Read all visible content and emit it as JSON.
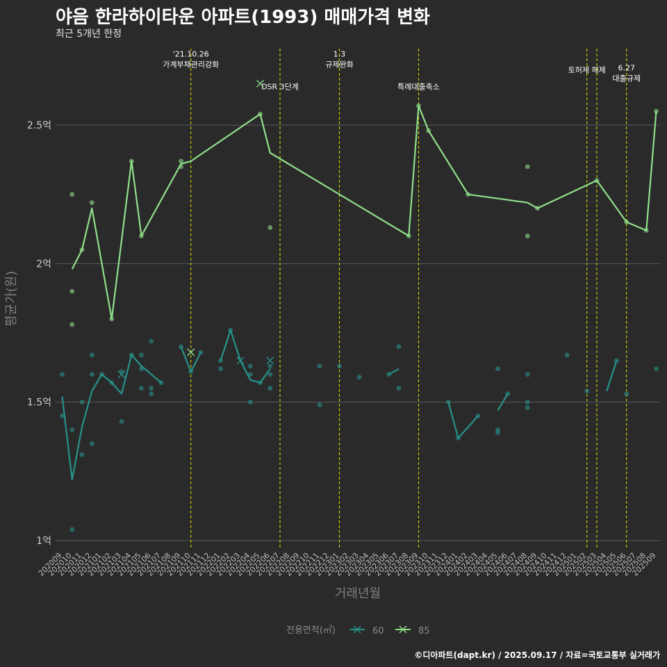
{
  "chart_data": {
    "type": "line",
    "title": "야음 한라하이타운 아파트(1993) 매매가격 변화",
    "subtitle": "최근 5개년 한정",
    "xlabel": "거래년월",
    "ylabel": "평균가(원)",
    "caption": "©디아파트(dapt.kr) / 2025.09.17 / 자료=국토교통부 실거래가",
    "categories": [
      "202009",
      "202010",
      "202011",
      "202012",
      "202101",
      "202102",
      "202103",
      "202104",
      "202105",
      "202106",
      "202107",
      "202108",
      "202109",
      "202110",
      "202111",
      "202112",
      "202201",
      "202202",
      "202203",
      "202204",
      "202205",
      "202206",
      "202207",
      "202208",
      "202209",
      "202210",
      "202211",
      "202212",
      "202301",
      "202302",
      "202303",
      "202304",
      "202305",
      "202306",
      "202307",
      "202308",
      "202309",
      "202310",
      "202311",
      "202312",
      "202401",
      "202402",
      "202403",
      "202404",
      "202405",
      "202406",
      "202407",
      "202408",
      "202409",
      "202410",
      "202411",
      "202412",
      "202501",
      "202502",
      "202503",
      "202504",
      "202505",
      "202506",
      "202507",
      "202508",
      "202509"
    ],
    "y_ticks": [
      {
        "value": 1.0,
        "label": "1억"
      },
      {
        "value": 1.5,
        "label": "1.5억"
      },
      {
        "value": 2.0,
        "label": "2억"
      },
      {
        "value": 2.5,
        "label": "2.5억"
      }
    ],
    "ylim": [
      0.97,
      2.78
    ],
    "grid": true,
    "legend": {
      "title": "전용면적(㎡)",
      "position": "bottom",
      "items": [
        {
          "name": "60",
          "color": "#26938a"
        },
        {
          "name": "85",
          "color": "#8fe08a"
        }
      ]
    },
    "events": [
      {
        "x": 13,
        "lines": [
          "'21.10.26",
          "가계부채관리강화"
        ],
        "y": 2.72
      },
      {
        "x": 22,
        "lines": [
          "DSR 3단계"
        ],
        "y": 2.64
      },
      {
        "x": 28,
        "lines": [
          "1.3",
          "규제완화"
        ],
        "y": 2.72
      },
      {
        "x": 36,
        "lines": [
          "특례대출축소"
        ],
        "y": 2.64
      },
      {
        "x": 53,
        "lines": [
          "토허제 해제"
        ],
        "y": 2.7
      },
      {
        "x": 54,
        "lines": [],
        "y": 2.7
      },
      {
        "x": 57,
        "lines": [
          "6.27",
          "대출규제"
        ],
        "y": 2.67
      }
    ],
    "series": [
      {
        "name": "60",
        "color": "#26938a",
        "line_segments": [
          [
            [
              0,
              1.52
            ],
            [
              1,
              1.22
            ],
            [
              2,
              1.41
            ],
            [
              3,
              1.54
            ],
            [
              4,
              1.6
            ],
            [
              5,
              1.57
            ],
            [
              6,
              1.53
            ],
            [
              7,
              1.67
            ],
            [
              8,
              1.63
            ],
            [
              9,
              1.6
            ],
            [
              10,
              1.57
            ]
          ],
          [
            [
              12,
              1.7
            ],
            [
              13,
              1.61
            ],
            [
              14,
              1.68
            ]
          ],
          [
            [
              16,
              1.65
            ],
            [
              17,
              1.76
            ],
            [
              18,
              1.65
            ],
            [
              19,
              1.58
            ],
            [
              20,
              1.57
            ],
            [
              21,
              1.62
            ]
          ],
          [
            [
              33,
              1.6
            ],
            [
              34,
              1.62
            ]
          ],
          [
            [
              39,
              1.5
            ],
            [
              40,
              1.37
            ],
            [
              41,
              1.41
            ],
            [
              42,
              1.45
            ]
          ],
          [
            [
              44,
              1.47
            ],
            [
              45,
              1.53
            ]
          ],
          [
            [
              55,
              1.54
            ],
            [
              56,
              1.65
            ]
          ]
        ],
        "points": [
          [
            0,
            1.6
          ],
          [
            0,
            1.45
          ],
          [
            1,
            1.4
          ],
          [
            1,
            1.04
          ],
          [
            2,
            1.31
          ],
          [
            2,
            1.5
          ],
          [
            3,
            1.67
          ],
          [
            3,
            1.6
          ],
          [
            3,
            1.35
          ],
          [
            4,
            1.6
          ],
          [
            5,
            1.57
          ],
          [
            6,
            1.61
          ],
          [
            6,
            1.43
          ],
          [
            7,
            1.67
          ],
          [
            8,
            1.67
          ],
          [
            8,
            1.62
          ],
          [
            8,
            1.55
          ],
          [
            9,
            1.72
          ],
          [
            9,
            1.55
          ],
          [
            9,
            1.53
          ],
          [
            10,
            1.57
          ],
          [
            12,
            1.7
          ],
          [
            13,
            1.61
          ],
          [
            14,
            1.68
          ],
          [
            16,
            1.65
          ],
          [
            16,
            1.62
          ],
          [
            17,
            1.76
          ],
          [
            19,
            1.63
          ],
          [
            19,
            1.6
          ],
          [
            19,
            1.5
          ],
          [
            20,
            1.57
          ],
          [
            21,
            1.6
          ],
          [
            21,
            1.55
          ],
          [
            21,
            1.63
          ],
          [
            26,
            1.49
          ],
          [
            26,
            1.63
          ],
          [
            28,
            1.63
          ],
          [
            30,
            1.59
          ],
          [
            33,
            1.6
          ],
          [
            34,
            1.7
          ],
          [
            34,
            1.55
          ],
          [
            39,
            1.5
          ],
          [
            40,
            1.37
          ],
          [
            42,
            1.45
          ],
          [
            44,
            1.4
          ],
          [
            44,
            1.39
          ],
          [
            44,
            1.62
          ],
          [
            45,
            1.53
          ],
          [
            47,
            1.6
          ],
          [
            47,
            1.5
          ],
          [
            47,
            1.48
          ],
          [
            51,
            1.67
          ],
          [
            53,
            1.54
          ],
          [
            56,
            1.65
          ],
          [
            57,
            1.53
          ],
          [
            60,
            1.62
          ]
        ],
        "x_markers": [
          [
            6,
            1.6
          ],
          [
            18,
            1.65
          ],
          [
            21,
            1.65
          ]
        ]
      },
      {
        "name": "85",
        "color": "#8fe08a",
        "line_segments": [
          [
            [
              1,
              1.98
            ],
            [
              2,
              2.05
            ],
            [
              3,
              2.2
            ],
            [
              5,
              1.8
            ],
            [
              7,
              2.37
            ],
            [
              8,
              2.1
            ],
            [
              12,
              2.36
            ],
            [
              13,
              2.37
            ],
            [
              20,
              2.54
            ],
            [
              21,
              2.4
            ],
            [
              35,
              2.1
            ],
            [
              36,
              2.57
            ],
            [
              37,
              2.48
            ],
            [
              41,
              2.25
            ],
            [
              47,
              2.22
            ],
            [
              48,
              2.2
            ],
            [
              54,
              2.3
            ],
            [
              57,
              2.15
            ],
            [
              59,
              2.12
            ],
            [
              60,
              2.55
            ]
          ]
        ],
        "points": [
          [
            1,
            2.25
          ],
          [
            1,
            1.9
          ],
          [
            1,
            1.78
          ],
          [
            2,
            2.05
          ],
          [
            3,
            2.22
          ],
          [
            5,
            1.8
          ],
          [
            7,
            2.37
          ],
          [
            8,
            2.1
          ],
          [
            12,
            2.37
          ],
          [
            12,
            2.35
          ],
          [
            20,
            2.54
          ],
          [
            21,
            2.13
          ],
          [
            35,
            2.1
          ],
          [
            36,
            2.57
          ],
          [
            37,
            2.48
          ],
          [
            41,
            2.25
          ],
          [
            47,
            2.35
          ],
          [
            47,
            2.1
          ],
          [
            48,
            2.2
          ],
          [
            54,
            2.3
          ],
          [
            57,
            2.15
          ],
          [
            59,
            2.12
          ],
          [
            60,
            2.55
          ]
        ],
        "x_markers": [
          [
            13,
            1.68
          ],
          [
            20,
            2.65
          ]
        ]
      }
    ]
  }
}
